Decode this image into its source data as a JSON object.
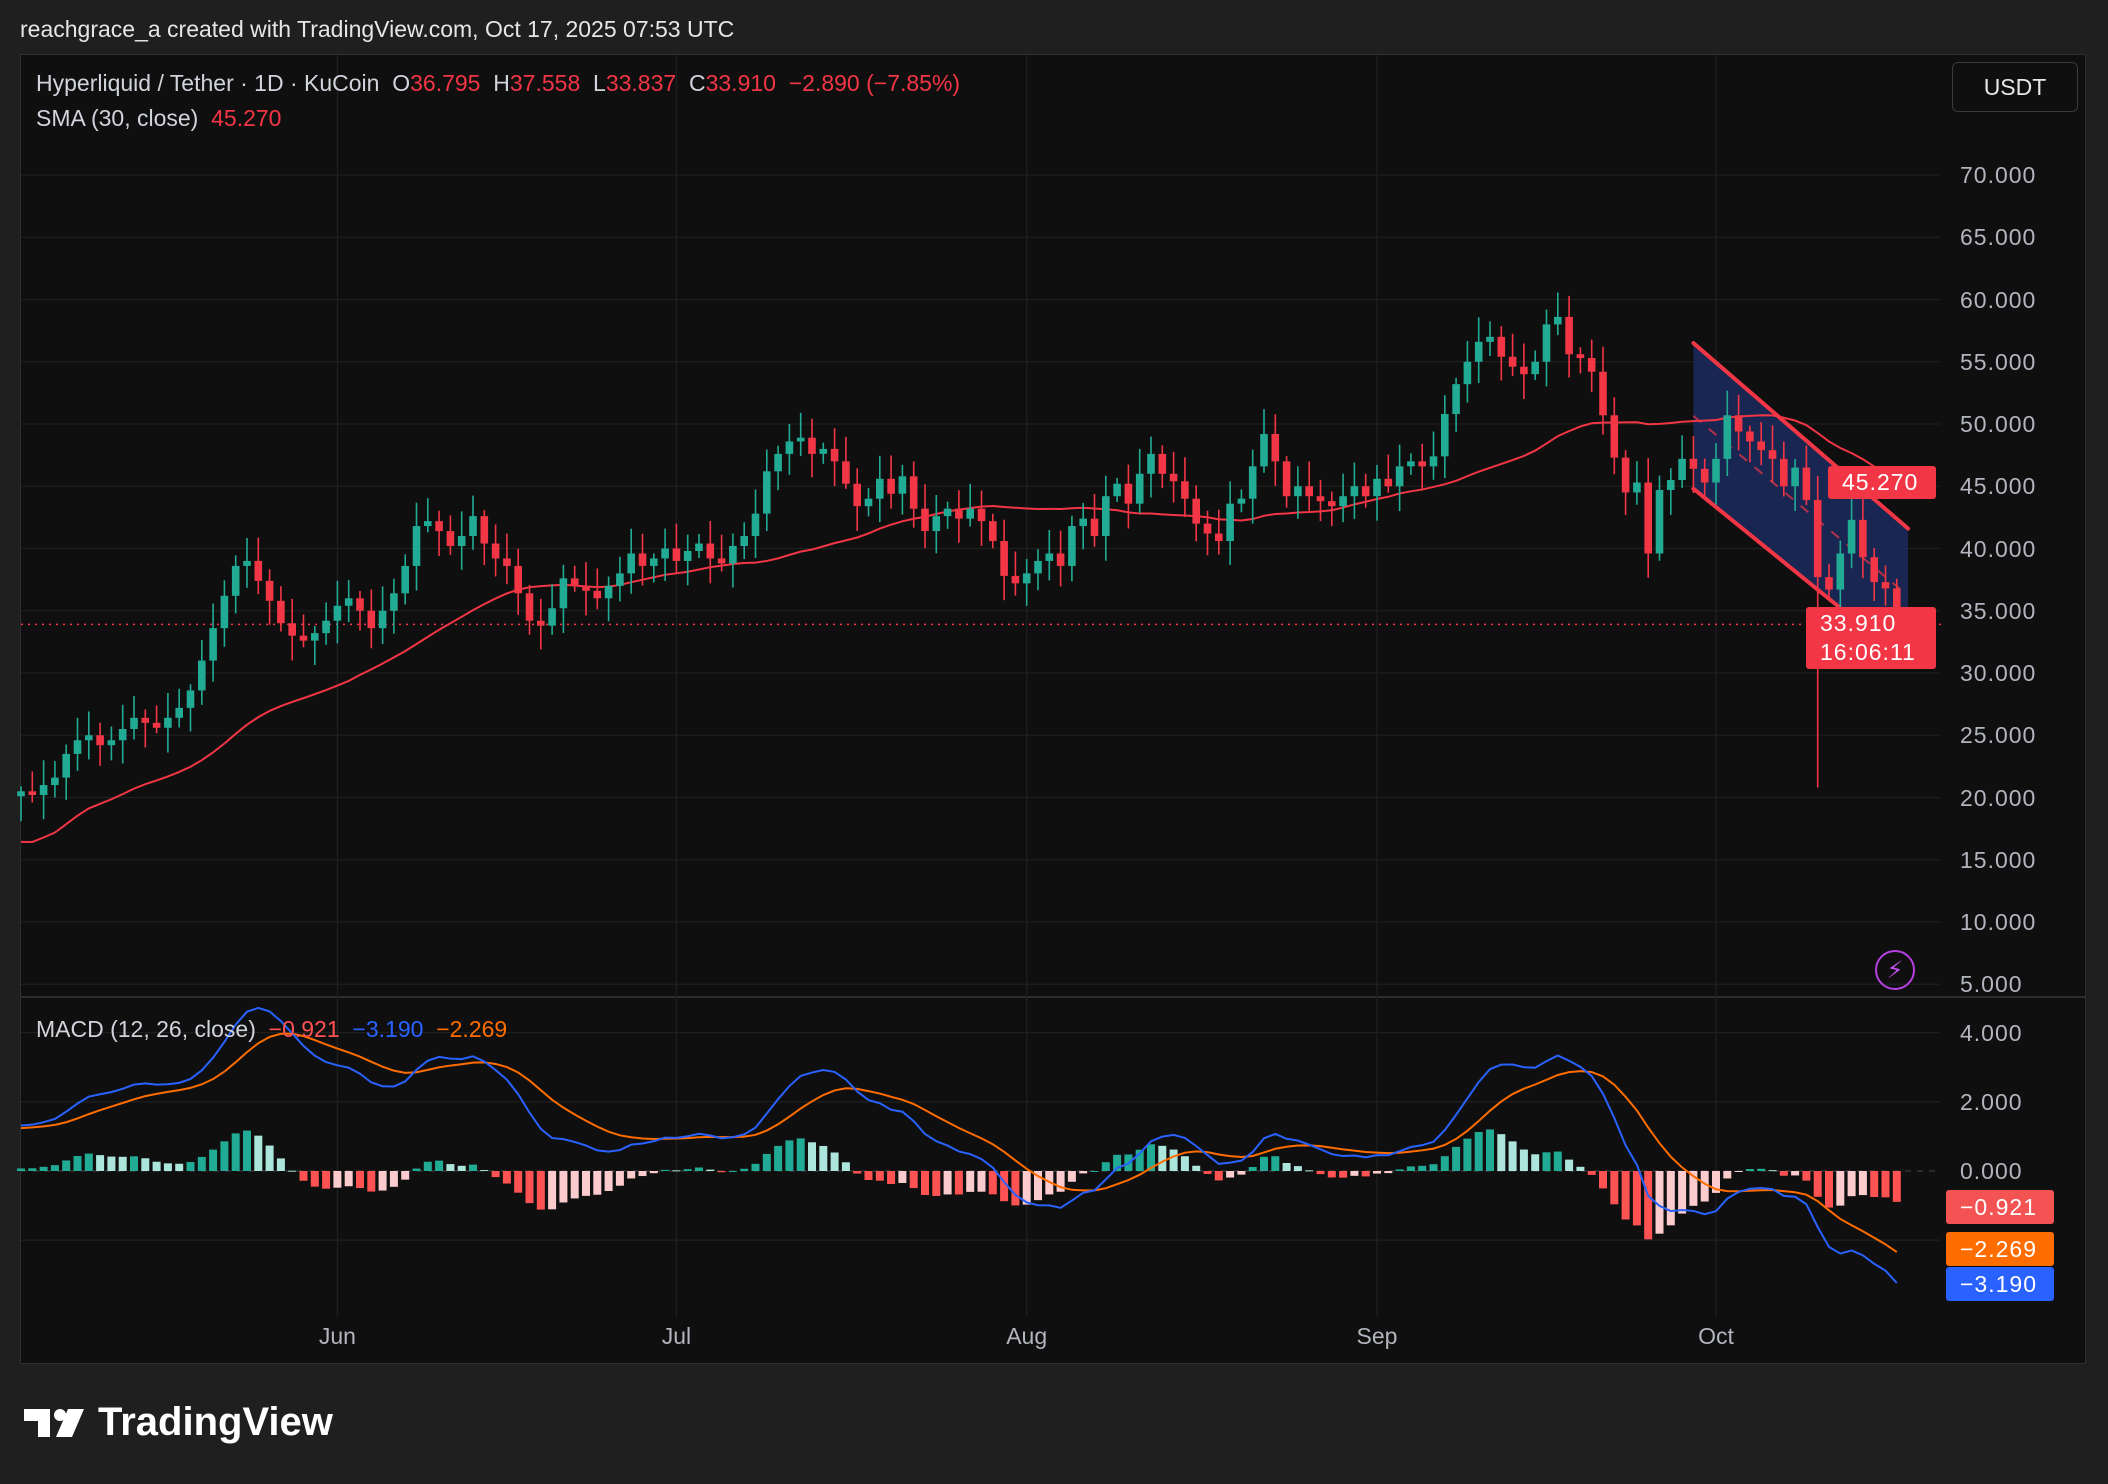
{
  "header": {
    "attribution": "reachgrace_a created with TradingView.com, Oct 17, 2025 07:53 UTC"
  },
  "legend": {
    "symbol": "Hyperliquid / Tether · 1D · KuCoin",
    "o_label": "O",
    "o": "36.795",
    "h_label": "H",
    "h": "37.558",
    "l_label": "L",
    "l": "33.837",
    "c_label": "C",
    "c": "33.910",
    "change": "−2.890 (−7.85%)"
  },
  "sma": {
    "label": "SMA (30, close)",
    "value": "45.270"
  },
  "macd": {
    "label": "MACD (12, 26, close)",
    "hist": "−0.921",
    "macd": "−3.190",
    "signal": "−2.269"
  },
  "currency_button": "USDT",
  "price_axis": {
    "ticks": [
      "70.000",
      "65.000",
      "60.000",
      "55.000",
      "50.000",
      "45.000",
      "40.000",
      "35.000",
      "30.000",
      "25.000",
      "20.000",
      "15.000",
      "10.000",
      "5.000"
    ]
  },
  "macd_axis": {
    "ticks": [
      "4.000",
      "2.000",
      "0.000"
    ]
  },
  "time_axis": [
    "Jun",
    "Jul",
    "Aug",
    "Sep",
    "Oct"
  ],
  "price_tags": {
    "sma": "45.270",
    "last": "33.910",
    "countdown": "16:06:11"
  },
  "macd_tags": {
    "hist": "−0.921",
    "signal": "−2.269",
    "macd": "−3.190"
  },
  "brand": "TradingView",
  "icons": {
    "alert": "lightning-icon",
    "logo": "tradingview-logo-icon"
  },
  "colors": {
    "up": "#22ab94",
    "down": "#f23645",
    "sma": "#f23645",
    "macd": "#2962ff",
    "signal": "#ff6d00",
    "hist_up": "#22ab94",
    "hist_up_light": "#ace5dc",
    "hist_down": "#ff5252",
    "hist_down_light": "#fccbcd",
    "channel_fill": "#1c2a5e",
    "channel_line": "#f23645"
  },
  "chart_data": {
    "type": "candlestick",
    "interval": "1D",
    "first_date": "2025-05-04",
    "ylim": [
      5,
      72
    ],
    "macd_ylim": [
      -4,
      5
    ],
    "closes": [
      20.5,
      20.2,
      21,
      21.6,
      23.5,
      24.6,
      25,
      24.2,
      24.6,
      25.5,
      26.4,
      26,
      25.6,
      26.4,
      27.2,
      28.6,
      31,
      33.6,
      36.2,
      38.6,
      39,
      37.4,
      35.8,
      34,
      33,
      32.6,
      33.2,
      34.2,
      35.4,
      36,
      35,
      33.6,
      35,
      36.4,
      38.6,
      41.8,
      42.2,
      41.4,
      40.2,
      41,
      42.6,
      40.4,
      39.2,
      38.6,
      36.4,
      34.2,
      33.8,
      35.2,
      37.6,
      37,
      36.6,
      36,
      37,
      38,
      39.6,
      38.6,
      39.2,
      40,
      39,
      39.8,
      40.4,
      39.2,
      38.8,
      40.2,
      41,
      42.8,
      46.2,
      47.6,
      48.6,
      48.9,
      47.6,
      48,
      47,
      45.2,
      43.4,
      44,
      45.6,
      44.4,
      45.8,
      43.2,
      41.4,
      42.6,
      43.2,
      42.4,
      43.2,
      42.2,
      40.6,
      37.8,
      37.2,
      38,
      39,
      39.6,
      38.6,
      41.8,
      42.4,
      41,
      44.2,
      45.2,
      43.6,
      46,
      47.6,
      46,
      45.4,
      44,
      42,
      41.2,
      40.6,
      43.6,
      44,
      46.6,
      49.2,
      47,
      44.2,
      45,
      44.2,
      43.8,
      43.4,
      44.2,
      45,
      44.2,
      45.6,
      45,
      46.6,
      47,
      46.6,
      47.4,
      50.8,
      53.2,
      55,
      56.6,
      57,
      55.4,
      54.6,
      54,
      55,
      58,
      58.6,
      55.6,
      55.3,
      54.2,
      50.7,
      47.3,
      44.5,
      45.3,
      39.6,
      44.7,
      45.5,
      47.2,
      46.4,
      45.3,
      47.2,
      50.7,
      49.4,
      48.6,
      47.9,
      47.2,
      45,
      46.5,
      43.9,
      37.7,
      36.7,
      39.6,
      42.3,
      39.3,
      37.3,
      36.795,
      33.91
    ],
    "last_candle": {
      "open": 36.795,
      "high": 37.558,
      "low": 33.837,
      "close": 33.91
    },
    "notable_wicks": [
      {
        "date": "2025-10-10",
        "low": 20.8
      }
    ],
    "indicators": [
      "SMA (30, close)",
      "MACD (12, 26, close)"
    ],
    "drawing": {
      "type": "descending-channel",
      "from": "2025-09-29",
      "to": "2025-10-18",
      "upper": [
        56.5,
        41.6
      ],
      "lower": [
        44.8,
        30.8
      ]
    }
  }
}
